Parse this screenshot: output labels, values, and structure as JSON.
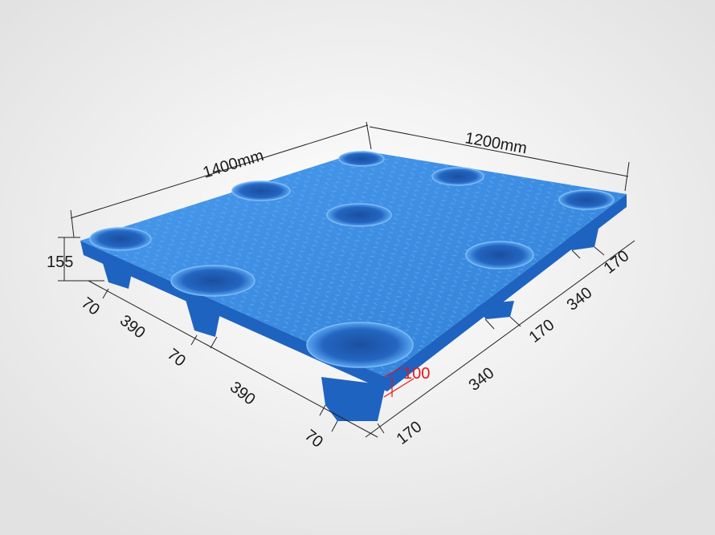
{
  "image": {
    "subject": "plastic pallet",
    "colors": {
      "pallet": "#3a8de0",
      "pallet_dark": "#1d5fb8",
      "background": "#ebebeb",
      "dimension_line": "#222222",
      "highlight_dimension": "#e8141b"
    }
  },
  "dimensions": {
    "length": "1400mm",
    "width": "1200mm",
    "height": "155",
    "left_side": [
      "70",
      "390",
      "70",
      "390",
      "70"
    ],
    "right_side": [
      "170",
      "340",
      "170",
      "340",
      "170"
    ],
    "leg_height": "100"
  }
}
